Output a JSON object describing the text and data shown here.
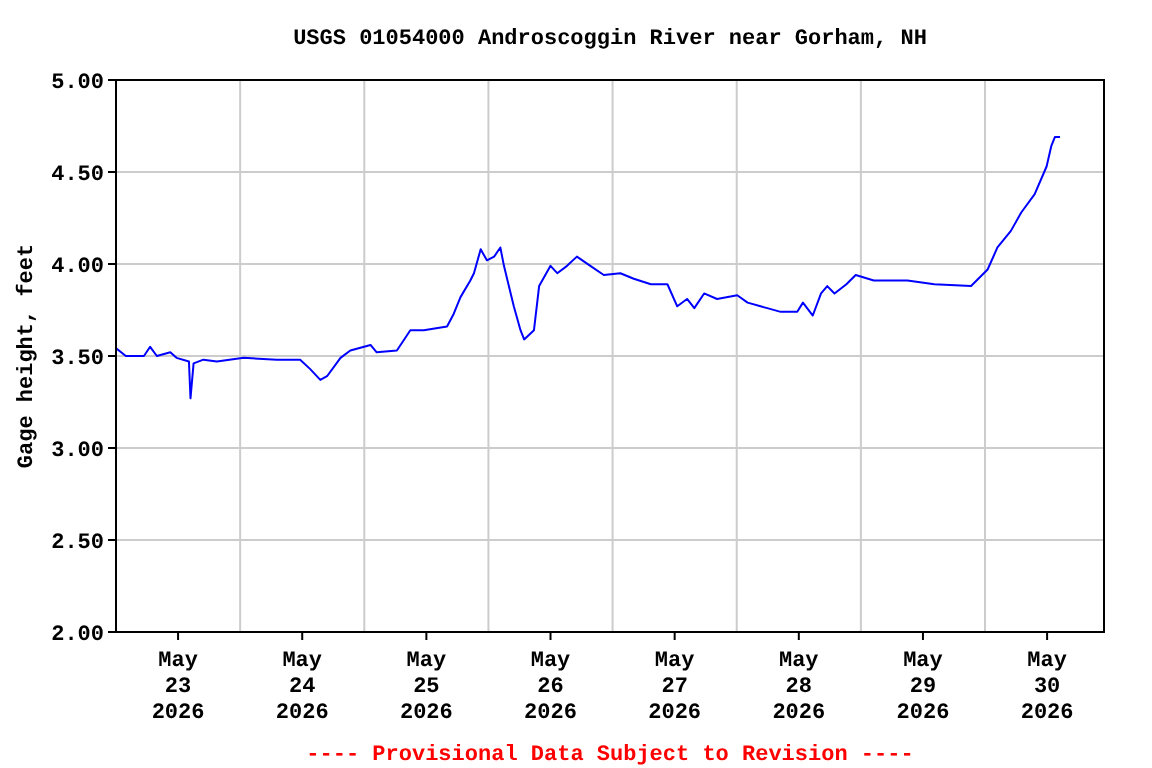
{
  "chart_data": {
    "type": "line",
    "title": "USGS 01054000 Androscoggin River near Gorham, NH",
    "ylabel": "Gage height, feet",
    "annotations": [
      "---- Provisional Data Subject to Revision ----"
    ],
    "xlim": [
      "2026-05-22T12:00",
      "2026-05-30T11:00"
    ],
    "ylim": [
      2,
      5
    ],
    "xticks": [
      {
        "value": "2026-05-23",
        "label": "May\n23\n2026"
      },
      {
        "value": "2026-05-23T12:00",
        "label": null
      },
      {
        "value": "2026-05-24",
        "label": "May\n24\n2026"
      },
      {
        "value": "2026-05-24T12:00",
        "label": null
      },
      {
        "value": "2026-05-25",
        "label": "May\n25\n2026"
      },
      {
        "value": "2026-05-25T12:00",
        "label": null
      },
      {
        "value": "2026-05-26",
        "label": "May\n26\n2026"
      },
      {
        "value": "2026-05-26T12:00",
        "label": null
      },
      {
        "value": "2026-05-27",
        "label": "May\n27\n2026"
      },
      {
        "value": "2026-05-27T12:00",
        "label": null
      },
      {
        "value": "2026-05-28",
        "label": "May\n28\n2026"
      },
      {
        "value": "2026-05-28T12:00",
        "label": null
      },
      {
        "value": "2026-05-29",
        "label": "May\n29\n2026"
      },
      {
        "value": "2026-05-29T12:00",
        "label": null
      },
      {
        "value": "2026-05-30",
        "label": "May\n30\n2026"
      }
    ],
    "yticks": [
      {
        "value": 2,
        "label": "2.00"
      },
      {
        "value": 2.5,
        "label": "2.50"
      },
      {
        "value": 3,
        "label": "3.00"
      },
      {
        "value": 3.5,
        "label": "3.50"
      },
      {
        "value": 4,
        "label": "4.00"
      },
      {
        "value": 4.5,
        "label": "4.50"
      },
      {
        "value": 5,
        "label": "5.00"
      }
    ],
    "grid": true,
    "series": [
      {
        "color": "#0000ff",
        "x": [
          "2026-05-22T12:06",
          "2026-05-22T13:54",
          "2026-05-22T17:24",
          "2026-05-22T18:36",
          "2026-05-22T19:54",
          "2026-05-22T22:30",
          "2026-05-22T23:42",
          "2026-05-23T02:06",
          "2026-05-23T02:24",
          "2026-05-23T03:00",
          "2026-05-23T04:54",
          "2026-05-23T07:30",
          "2026-05-23T12:42",
          "2026-05-23T19:06",
          "2026-05-23T23:36",
          "2026-05-24T01:30",
          "2026-05-24T03:30",
          "2026-05-24T04:48",
          "2026-05-24T07:24",
          "2026-05-24T09:18",
          "2026-05-24T13:12",
          "2026-05-24T14:24",
          "2026-05-24T18:18",
          "2026-05-24T20:54",
          "2026-05-24T23:30",
          "2026-05-25T04:00",
          "2026-05-25T05:18",
          "2026-05-25T06:36",
          "2026-05-25T08:30",
          "2026-05-25T09:12",
          "2026-05-25T10:30",
          "2026-05-25T11:42",
          "2026-05-25T13:06",
          "2026-05-25T14:18",
          "2026-05-25T15:00",
          "2026-05-25T16:54",
          "2026-05-25T18:12",
          "2026-05-25T18:54",
          "2026-05-25T20:48",
          "2026-05-25T21:48",
          "2026-05-26T00:00",
          "2026-05-26T01:18",
          "2026-05-26T03:12",
          "2026-05-26T05:06",
          "2026-05-26T07:42",
          "2026-05-26T10:18",
          "2026-05-26T13:30",
          "2026-05-26T16:06",
          "2026-05-26T19:24",
          "2026-05-26T22:36",
          "2026-05-27T00:30",
          "2026-05-27T02:24",
          "2026-05-27T03:48",
          "2026-05-27T05:42",
          "2026-05-27T08:12",
          "2026-05-27T12:06",
          "2026-05-27T14:06",
          "2026-05-27T16:36",
          "2026-05-27T17:54",
          "2026-05-27T20:30",
          "2026-05-27T23:42",
          "2026-05-28T00:48",
          "2026-05-28T02:42",
          "2026-05-28T04:18",
          "2026-05-28T05:30",
          "2026-05-28T06:54",
          "2026-05-28T09:12",
          "2026-05-28T11:00",
          "2026-05-28T14:30",
          "2026-05-28T21:00",
          "2026-05-29T02:12",
          "2026-05-29T09:18",
          "2026-05-29T12:30",
          "2026-05-29T14:24",
          "2026-05-29T17:00",
          "2026-05-29T19:00",
          "2026-05-29T21:36",
          "2026-05-29T23:54",
          "2026-05-30T00:48",
          "2026-05-30T01:30",
          "2026-05-30T02:30"
        ],
        "values": [
          3.54,
          3.5,
          3.5,
          3.55,
          3.5,
          3.52,
          3.49,
          3.47,
          3.27,
          3.46,
          3.48,
          3.47,
          3.49,
          3.48,
          3.48,
          3.43,
          3.37,
          3.39,
          3.49,
          3.53,
          3.56,
          3.52,
          3.53,
          3.64,
          3.64,
          3.66,
          3.73,
          3.82,
          3.91,
          3.95,
          4.08,
          4.02,
          4.04,
          4.09,
          3.99,
          3.77,
          3.64,
          3.59,
          3.64,
          3.88,
          3.99,
          3.95,
          3.99,
          4.04,
          3.99,
          3.94,
          3.95,
          3.92,
          3.89,
          3.89,
          3.77,
          3.81,
          3.76,
          3.84,
          3.81,
          3.83,
          3.79,
          3.77,
          3.76,
          3.74,
          3.74,
          3.79,
          3.72,
          3.84,
          3.88,
          3.84,
          3.89,
          3.94,
          3.91,
          3.91,
          3.89,
          3.88,
          3.97,
          4.09,
          4.18,
          4.28,
          4.38,
          4.53,
          4.64,
          4.69,
          4.69
        ]
      }
    ]
  }
}
